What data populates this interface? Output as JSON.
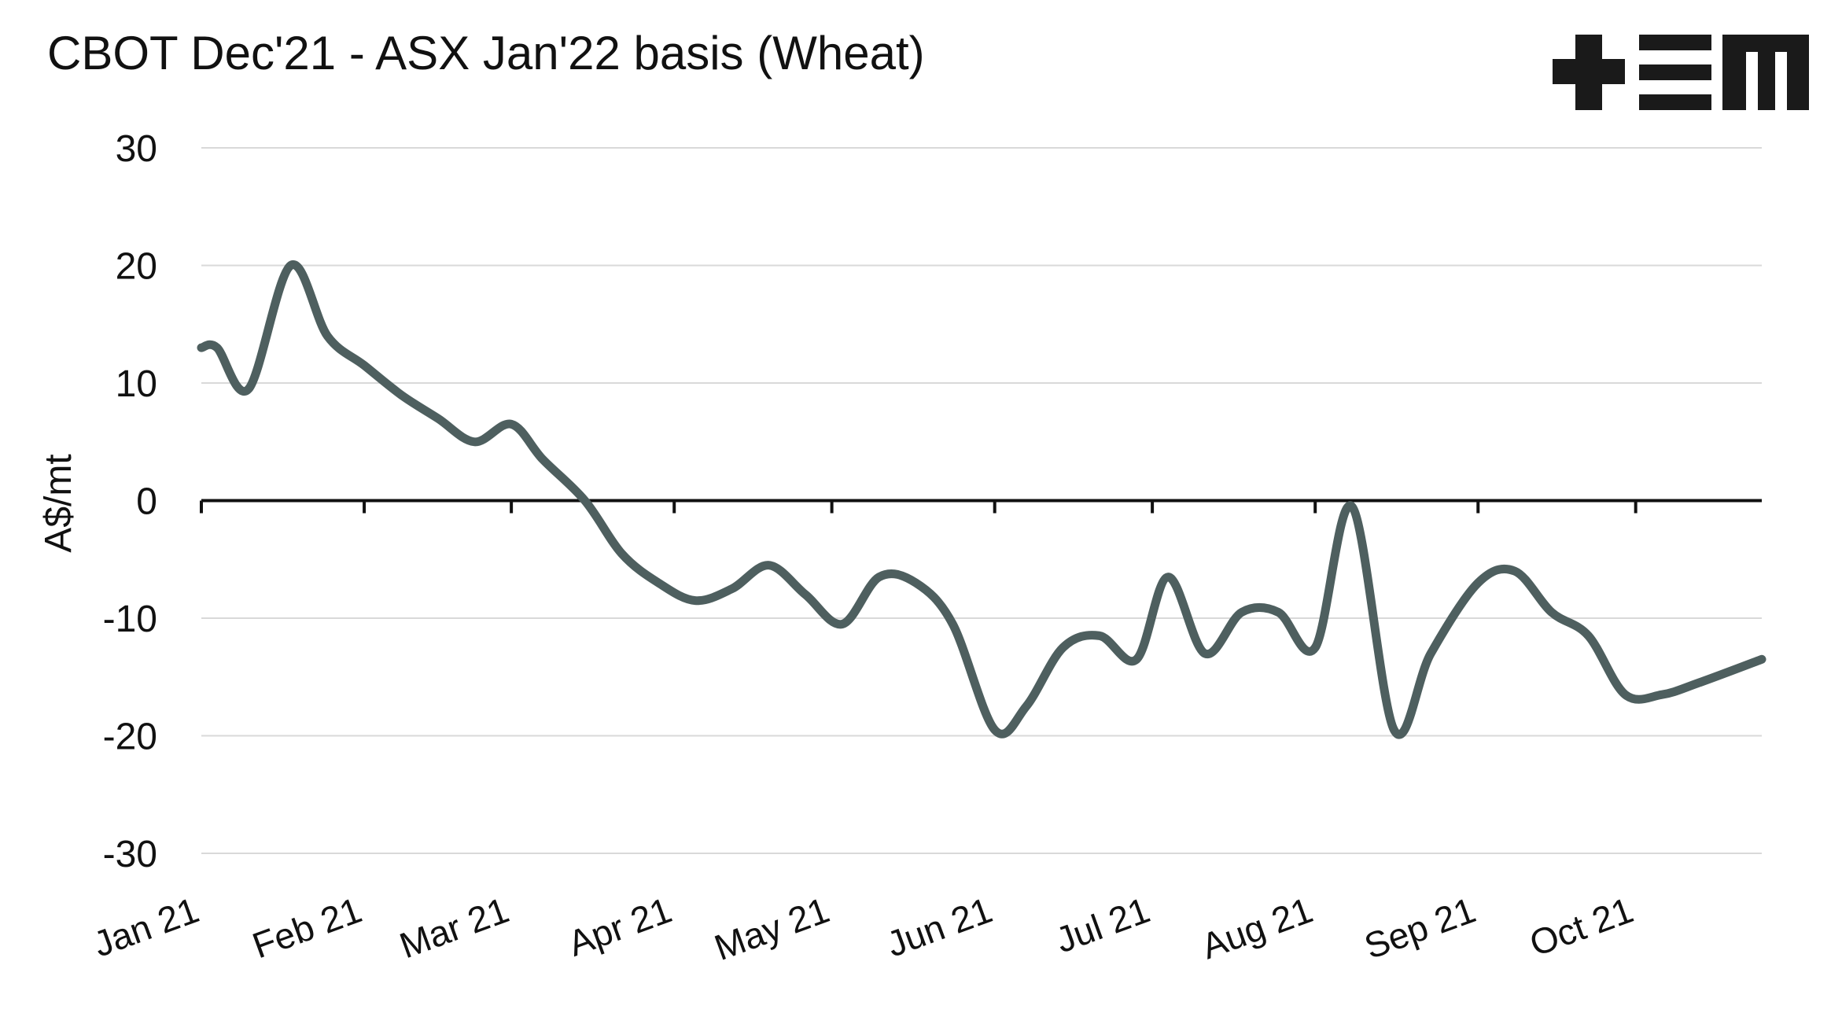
{
  "chart_data": {
    "type": "line",
    "title": "CBOT Dec'21 - ASX Jan'22 basis (Wheat)",
    "xlabel": "",
    "ylabel": "A$/mt",
    "ylim": [
      -30,
      30
    ],
    "yticks": [
      30,
      20,
      10,
      0,
      -10,
      -20,
      -30
    ],
    "grid": true,
    "legend": "none",
    "x_axis_type": "date",
    "xlim": [
      "2021-01-01",
      "2021-10-25"
    ],
    "x_tick_labels": [
      {
        "date": "2021-01-01",
        "label": "Jan 21"
      },
      {
        "date": "2021-02-01",
        "label": "Feb 21"
      },
      {
        "date": "2021-03-01",
        "label": "Mar 21"
      },
      {
        "date": "2021-04-01",
        "label": "Apr 21"
      },
      {
        "date": "2021-05-01",
        "label": "May 21"
      },
      {
        "date": "2021-06-01",
        "label": "Jun 21"
      },
      {
        "date": "2021-07-01",
        "label": "Jul 21"
      },
      {
        "date": "2021-08-01",
        "label": "Aug 21"
      },
      {
        "date": "2021-09-01",
        "label": "Sep 21"
      },
      {
        "date": "2021-10-01",
        "label": "Oct 21"
      }
    ],
    "series": [
      {
        "color": "#4e5f5f",
        "points": [
          {
            "x": "2021-01-01",
            "y": 13.0
          },
          {
            "x": "2021-01-04",
            "y": 13.0
          },
          {
            "x": "2021-01-10",
            "y": 9.5
          },
          {
            "x": "2021-01-18",
            "y": 20.0
          },
          {
            "x": "2021-01-25",
            "y": 14.0
          },
          {
            "x": "2021-02-01",
            "y": 11.5
          },
          {
            "x": "2021-02-08",
            "y": 9.0
          },
          {
            "x": "2021-02-15",
            "y": 7.0
          },
          {
            "x": "2021-02-22",
            "y": 5.0
          },
          {
            "x": "2021-03-01",
            "y": 6.5
          },
          {
            "x": "2021-03-07",
            "y": 3.5
          },
          {
            "x": "2021-03-15",
            "y": 0.0
          },
          {
            "x": "2021-03-22",
            "y": -4.5
          },
          {
            "x": "2021-03-29",
            "y": -7.0
          },
          {
            "x": "2021-04-05",
            "y": -8.5
          },
          {
            "x": "2021-04-12",
            "y": -7.5
          },
          {
            "x": "2021-04-19",
            "y": -5.5
          },
          {
            "x": "2021-04-26",
            "y": -8.0
          },
          {
            "x": "2021-05-03",
            "y": -10.5
          },
          {
            "x": "2021-05-10",
            "y": -6.5
          },
          {
            "x": "2021-05-17",
            "y": -7.0
          },
          {
            "x": "2021-05-24",
            "y": -10.5
          },
          {
            "x": "2021-06-01",
            "y": -19.5
          },
          {
            "x": "2021-06-07",
            "y": -17.5
          },
          {
            "x": "2021-06-14",
            "y": -12.5
          },
          {
            "x": "2021-06-21",
            "y": -11.5
          },
          {
            "x": "2021-06-28",
            "y": -13.5
          },
          {
            "x": "2021-07-04",
            "y": -6.5
          },
          {
            "x": "2021-07-11",
            "y": -13.0
          },
          {
            "x": "2021-07-18",
            "y": -9.5
          },
          {
            "x": "2021-07-25",
            "y": -9.5
          },
          {
            "x": "2021-08-01",
            "y": -12.5
          },
          {
            "x": "2021-08-08",
            "y": -0.5
          },
          {
            "x": "2021-08-16",
            "y": -19.5
          },
          {
            "x": "2021-08-23",
            "y": -13.0
          },
          {
            "x": "2021-09-01",
            "y": -7.0
          },
          {
            "x": "2021-09-08",
            "y": -6.0
          },
          {
            "x": "2021-09-15",
            "y": -9.5
          },
          {
            "x": "2021-09-22",
            "y": -11.5
          },
          {
            "x": "2021-09-29",
            "y": -16.5
          },
          {
            "x": "2021-10-06",
            "y": -16.5
          },
          {
            "x": "2021-10-13",
            "y": -15.5
          },
          {
            "x": "2021-10-25",
            "y": -13.5
          }
        ]
      }
    ]
  },
  "logo": {
    "color": "#1a1a1a"
  }
}
